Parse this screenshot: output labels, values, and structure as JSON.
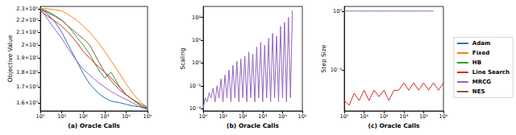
{
  "chart_data": [
    {
      "type": "line",
      "xlabel": "(a) Oracle Calls",
      "ylabel": "Objective Value",
      "log": true,
      "grid": false,
      "legend": "right",
      "x": [
        1,
        2,
        5,
        10,
        20,
        50,
        100,
        200,
        500,
        1000,
        2000,
        5000,
        10000,
        20000,
        50000,
        100000
      ],
      "xlim": [
        1,
        100000
      ],
      "xticks": [
        {
          "value": 1,
          "label": "10⁰"
        },
        {
          "value": 10,
          "label": "10¹"
        },
        {
          "value": 100,
          "label": "10²"
        },
        {
          "value": 1000,
          "label": "10³"
        },
        {
          "value": 10000,
          "label": "10⁴"
        },
        {
          "value": 100000,
          "label": "10⁵"
        }
      ],
      "ylim": [
        1.55,
        2.32
      ],
      "yticks": [
        {
          "value": 1.6,
          "label": "1.6×10⁰"
        },
        {
          "value": 1.7,
          "label": "1.7×10⁰"
        },
        {
          "value": 1.8,
          "label": "1.8×10⁰"
        },
        {
          "value": 1.9,
          "label": "1.9×10⁰"
        },
        {
          "value": 2.0,
          "label": "2×10⁰"
        },
        {
          "value": 2.1,
          "label": "2.1×10⁰"
        },
        {
          "value": 2.2,
          "label": "2.2×10⁰"
        },
        {
          "value": 2.3,
          "label": "2.3×10⁰"
        }
      ],
      "series": [
        {
          "name": "Adam",
          "color": "#1f77b4",
          "values": [
            2.3,
            2.26,
            2.18,
            2.1,
            2.0,
            1.88,
            1.79,
            1.72,
            1.66,
            1.63,
            1.61,
            1.6,
            1.59,
            1.58,
            1.575,
            1.57
          ]
        },
        {
          "name": "Fixed",
          "color": "#ff7f0e",
          "values": [
            2.3,
            2.3,
            2.29,
            2.28,
            2.25,
            2.2,
            2.15,
            2.1,
            2.02,
            1.95,
            1.88,
            1.79,
            1.72,
            1.66,
            1.6,
            1.57
          ]
        },
        {
          "name": "HB",
          "color": "#2ca02c",
          "values": [
            2.3,
            2.28,
            2.24,
            2.2,
            2.15,
            2.06,
            2.0,
            1.93,
            1.82,
            1.76,
            1.8,
            1.7,
            1.65,
            1.62,
            1.59,
            1.57
          ]
        },
        {
          "name": "Line Search",
          "color": "#d62728",
          "values": [
            2.28,
            2.24,
            2.19,
            2.15,
            2.1,
            2.02,
            1.95,
            1.9,
            1.84,
            1.8,
            1.76,
            1.7,
            1.65,
            1.62,
            1.58,
            1.56
          ]
        },
        {
          "name": "MRCG",
          "color": "#9467bd",
          "values": [
            2.3,
            2.22,
            2.12,
            2.05,
            1.97,
            1.88,
            1.82,
            1.78,
            1.73,
            1.7,
            1.67,
            1.64,
            1.62,
            1.6,
            1.57,
            1.56
          ]
        },
        {
          "name": "NES",
          "color": "#8c564b",
          "values": [
            2.3,
            2.27,
            2.23,
            2.2,
            2.15,
            2.09,
            2.05,
            2.0,
            1.88,
            1.8,
            1.74,
            1.68,
            1.65,
            1.62,
            1.58,
            1.56
          ]
        }
      ]
    },
    {
      "type": "line",
      "xlabel": "(b) Oracle Calls",
      "ylabel": "Scaling",
      "log": true,
      "grid": false,
      "x": [
        1,
        1.26,
        1.58,
        2,
        2.51,
        3.16,
        3.98,
        5.01,
        6.31,
        7.94,
        10,
        12.6,
        15.8,
        20,
        25.1,
        31.6,
        39.8,
        50.1,
        63.1,
        79.4,
        100,
        126,
        158,
        200,
        251,
        316,
        398,
        501,
        631,
        794,
        1000,
        1259,
        1585,
        1995,
        2512,
        3162,
        3981,
        5012,
        6310,
        7943,
        10000,
        12589,
        15849,
        19953,
        25119,
        31623
      ],
      "xlim": [
        1,
        100000
      ],
      "xticks": [
        {
          "value": 1,
          "label": "10⁰"
        },
        {
          "value": 10,
          "label": "10¹"
        },
        {
          "value": 100,
          "label": "10²"
        },
        {
          "value": 1000,
          "label": "10³"
        },
        {
          "value": 10000,
          "label": "10⁴"
        },
        {
          "value": 100000,
          "label": "10⁵"
        }
      ],
      "ylim": [
        0.008,
        300
      ],
      "yticks": [
        {
          "value": 0.01,
          "label": "10⁻²"
        },
        {
          "value": 0.1,
          "label": "10⁻¹"
        },
        {
          "value": 1,
          "label": "10⁰"
        },
        {
          "value": 10,
          "label": "10¹"
        },
        {
          "value": 100,
          "label": "10²"
        }
      ],
      "series": [
        {
          "name": "MRCG",
          "color": "#9467bd",
          "values": [
            0.01,
            0.03,
            0.02,
            0.05,
            0.03,
            0.08,
            0.02,
            0.1,
            0.03,
            0.2,
            0.02,
            0.3,
            0.03,
            0.5,
            0.02,
            0.8,
            0.03,
            1.2,
            0.02,
            1.5,
            0.03,
            2,
            0.02,
            3,
            0.03,
            2.5,
            0.02,
            5,
            0.03,
            8,
            0.02,
            6,
            0.03,
            12,
            0.02,
            20,
            0.03,
            15,
            0.02,
            40,
            0.03,
            60,
            0.02,
            100,
            0.03,
            200
          ]
        }
      ]
    },
    {
      "type": "line",
      "xlabel": "(c) Oracle Calls",
      "ylabel": "Step Size",
      "log": true,
      "grid": false,
      "x": [
        1,
        1.78,
        3.16,
        5.62,
        10,
        17.8,
        31.6,
        56.2,
        100,
        178,
        316,
        562,
        1000,
        1778,
        3162,
        5623,
        10000,
        17783,
        31623,
        56234,
        100000
      ],
      "xlim": [
        1,
        100000
      ],
      "xticks": [
        {
          "value": 1,
          "label": "10⁰"
        },
        {
          "value": 10,
          "label": "10¹"
        },
        {
          "value": 100,
          "label": "10²"
        },
        {
          "value": 1000,
          "label": "10³"
        },
        {
          "value": 10000,
          "label": "10⁴"
        },
        {
          "value": 100000,
          "label": "10⁵"
        }
      ],
      "ylim": [
        0.02,
        1.2
      ],
      "yticks": [
        {
          "value": 0.1,
          "label": "10⁻¹"
        },
        {
          "value": 1,
          "label": "10⁰"
        }
      ],
      "series": [
        {
          "name": "Line Search",
          "color": "#d62728",
          "values": [
            0.03,
            0.025,
            0.04,
            0.03,
            0.045,
            0.03,
            0.045,
            0.035,
            0.045,
            0.03,
            0.045,
            0.045,
            0.06,
            0.045,
            0.06,
            0.045,
            0.06,
            0.045,
            0.06,
            0.045,
            0.06
          ]
        },
        {
          "name": "MRCG",
          "color": "#9467bd",
          "values": [
            1,
            1,
            1,
            1,
            1,
            1,
            1,
            1,
            1,
            1,
            1,
            1,
            1,
            1,
            1,
            1,
            1,
            1,
            1,
            null,
            null
          ]
        }
      ]
    }
  ]
}
